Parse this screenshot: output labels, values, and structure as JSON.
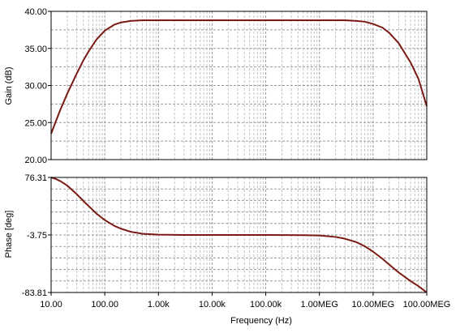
{
  "chart_data": [
    {
      "type": "line",
      "ylabel": "Gain (dB)",
      "xscale": "log",
      "xlim": [
        10,
        100000000
      ],
      "ylim": [
        20,
        40
      ],
      "yticks": [
        "20.00",
        "25.00",
        "30.00",
        "35.00",
        "40.00"
      ],
      "ytick_values": [
        20,
        25,
        30,
        35,
        40
      ],
      "grid": true,
      "series": [
        {
          "color": "#7a1a14",
          "x": [
            10,
            12,
            15,
            20,
            30,
            40,
            50,
            70,
            100,
            150,
            200,
            300,
            500,
            1000,
            10000,
            100000,
            1000000,
            2000000,
            3000000,
            5000000,
            7000000,
            10000000,
            15000000,
            20000000,
            30000000,
            50000000,
            70000000,
            100000000
          ],
          "y": [
            23.5,
            25.0,
            26.8,
            28.9,
            31.6,
            33.4,
            34.6,
            36.2,
            37.4,
            38.2,
            38.5,
            38.7,
            38.8,
            38.8,
            38.8,
            38.8,
            38.8,
            38.8,
            38.8,
            38.7,
            38.6,
            38.3,
            37.8,
            37.1,
            35.7,
            33.1,
            30.9,
            27.2
          ]
        }
      ]
    },
    {
      "type": "line",
      "ylabel": "Phase [deg]",
      "xlabel": "Frequency (Hz)",
      "xscale": "log",
      "xlim": [
        10,
        100000000
      ],
      "ylim": [
        -83.81,
        76.31
      ],
      "yticks": [
        "-83.81",
        "-3.75",
        "76.31"
      ],
      "ytick_values": [
        -83.81,
        -3.75,
        76.31
      ],
      "xticks": [
        "10.00",
        "100.00",
        "1.00k",
        "10.00k",
        "100.00k",
        "1.00MEG",
        "10.00MEG",
        "100.00MEG"
      ],
      "xtick_values": [
        10,
        100,
        1000,
        10000,
        100000,
        1000000,
        10000000,
        100000000
      ],
      "grid": true,
      "series": [
        {
          "color": "#7a1a14",
          "x": [
            10,
            12,
            15,
            20,
            30,
            40,
            50,
            70,
            100,
            150,
            200,
            300,
            500,
            1000,
            3000,
            10000,
            100000,
            500000,
            1000000,
            2000000,
            3000000,
            5000000,
            7000000,
            10000000,
            15000000,
            20000000,
            30000000,
            50000000,
            70000000,
            100000000
          ],
          "y": [
            76.3,
            74.5,
            71.0,
            65.0,
            53.0,
            43.5,
            36.5,
            26.0,
            17.0,
            9.0,
            5.0,
            0.8,
            -2.0,
            -3.3,
            -3.75,
            -3.75,
            -3.75,
            -4.0,
            -4.5,
            -6.5,
            -9.0,
            -14.0,
            -19.5,
            -27.0,
            -37.0,
            -45.0,
            -56.0,
            -68.0,
            -75.0,
            -83.8
          ]
        }
      ]
    }
  ]
}
